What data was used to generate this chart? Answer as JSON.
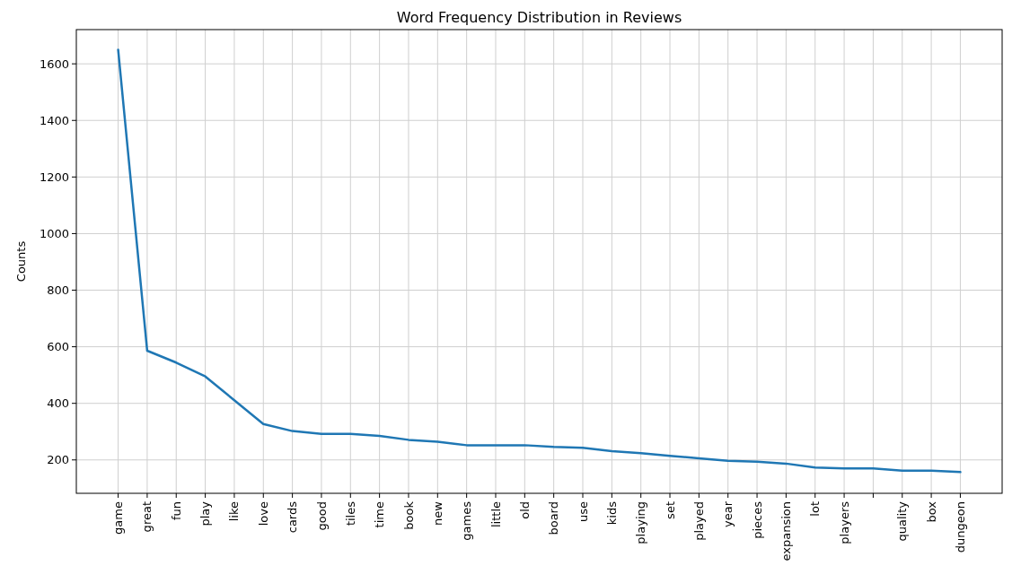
{
  "chart_data": {
    "type": "line",
    "title": "Word Frequency Distribution in Reviews",
    "ylabel": "Counts",
    "categories": [
      "game",
      "great",
      "fun",
      "play",
      "like",
      "love",
      "cards",
      "good",
      "tiles",
      "time",
      "book",
      "new",
      "games",
      "little",
      "old",
      "board",
      "use",
      "kids",
      "playing",
      "set",
      "played",
      "year",
      "pieces",
      "expansion",
      "lot",
      "players",
      null,
      "quality",
      "box",
      "dungeon"
    ],
    "series": [
      {
        "color": "#1f77b4",
        "values": [
          1650,
          586,
          544,
          495,
          411,
          327,
          302,
          292,
          292,
          285,
          271,
          264,
          252,
          252,
          252,
          246,
          243,
          231,
          224,
          214,
          206,
          197,
          194,
          187,
          173,
          170,
          170,
          162,
          162,
          157
        ]
      }
    ],
    "ylim": [
      82,
      1721
    ],
    "yticks": [
      200,
      400,
      600,
      800,
      1000,
      1200,
      1400,
      1600
    ],
    "grid": true,
    "line_style": "solid",
    "marker": "none"
  }
}
